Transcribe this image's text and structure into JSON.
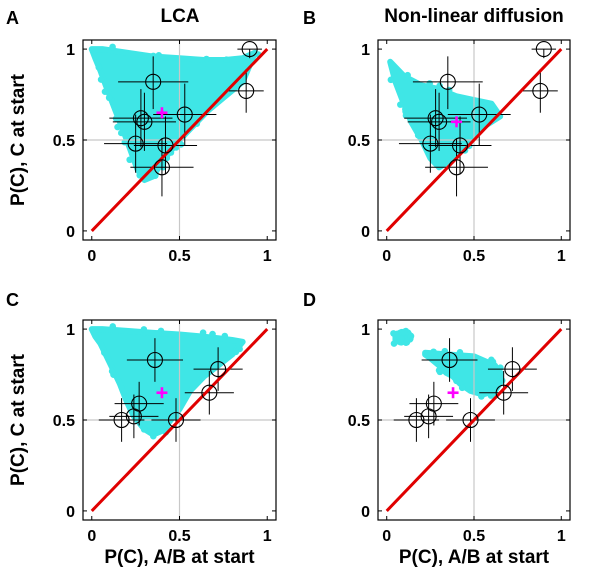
{
  "colors": {
    "simulation_cloud": "#3fe6e6",
    "identity_line": "#e00000",
    "mean_cross": "#ff00ff",
    "reference_line": "#c8c8c8",
    "data_marker": "#000000",
    "axes": "#000000"
  },
  "chart_data": [
    {
      "type": "scatter",
      "panel_letter": "A",
      "title": "LCA",
      "xlabel": "",
      "ylabel": "P(C), C at start",
      "xlim": [
        -0.05,
        1.05
      ],
      "ylim": [
        -0.05,
        1.05
      ],
      "xticks": [
        "0",
        "0.5",
        "1"
      ],
      "yticks": [
        "0",
        "0.5",
        "1"
      ],
      "reference_lines": {
        "x": 0.5,
        "y": 0.5
      },
      "identity_line": {
        "x": [
          0.0,
          1.0
        ],
        "y": [
          0.0,
          1.0
        ]
      },
      "simulation_region": {
        "x": [
          0.0,
          0.06,
          0.2,
          0.34,
          0.5,
          0.64,
          0.76,
          0.86,
          0.93,
          0.86,
          0.76,
          0.66,
          0.56,
          0.5,
          0.45,
          0.4,
          0.35,
          0.3,
          0.26,
          0.2,
          0.16,
          0.12,
          0.08,
          0.05,
          0.02
        ],
        "y": [
          1.0,
          1.0,
          0.98,
          0.96,
          0.95,
          0.94,
          0.94,
          0.95,
          0.98,
          0.82,
          0.74,
          0.66,
          0.56,
          0.5,
          0.44,
          0.38,
          0.3,
          0.28,
          0.34,
          0.5,
          0.6,
          0.7,
          0.8,
          0.88,
          0.95
        ]
      },
      "mean": {
        "x": 0.4,
        "y": 0.65
      },
      "data_points": [
        {
          "x": 0.9,
          "y": 1.0,
          "xerr": [
            0.83,
            0.97
          ],
          "yerr": [
            0.95,
            1.0
          ]
        },
        {
          "x": 0.88,
          "y": 0.77,
          "xerr": [
            0.78,
            0.98
          ],
          "yerr": [
            0.65,
            0.89
          ]
        },
        {
          "x": 0.35,
          "y": 0.82,
          "xerr": [
            0.15,
            0.55
          ],
          "yerr": [
            0.67,
            0.96
          ]
        },
        {
          "x": 0.28,
          "y": 0.62,
          "xerr": [
            0.1,
            0.46
          ],
          "yerr": [
            0.46,
            0.78
          ]
        },
        {
          "x": 0.3,
          "y": 0.6,
          "xerr": [
            0.12,
            0.48
          ],
          "yerr": [
            0.44,
            0.76
          ]
        },
        {
          "x": 0.53,
          "y": 0.64,
          "xerr": [
            0.35,
            0.71
          ],
          "yerr": [
            0.47,
            0.81
          ]
        },
        {
          "x": 0.25,
          "y": 0.48,
          "xerr": [
            0.07,
            0.43
          ],
          "yerr": [
            0.32,
            0.64
          ]
        },
        {
          "x": 0.42,
          "y": 0.47,
          "xerr": [
            0.24,
            0.6
          ],
          "yerr": [
            0.31,
            0.63
          ]
        },
        {
          "x": 0.4,
          "y": 0.35,
          "xerr": [
            0.22,
            0.58
          ],
          "yerr": [
            0.19,
            0.51
          ]
        }
      ]
    },
    {
      "type": "scatter",
      "panel_letter": "B",
      "title": "Non-linear diffusion",
      "xlabel": "",
      "ylabel": "",
      "xlim": [
        -0.05,
        1.05
      ],
      "ylim": [
        -0.05,
        1.05
      ],
      "xticks": [
        "0",
        "0.5",
        "1"
      ],
      "yticks": [
        "0",
        "0.5",
        "1"
      ],
      "reference_lines": {
        "x": 0.5,
        "y": 0.5
      },
      "identity_line": {
        "x": [
          0.0,
          1.0
        ],
        "y": [
          0.0,
          1.0
        ]
      },
      "simulation_region": {
        "x": [
          0.02,
          0.1,
          0.2,
          0.3,
          0.4,
          0.5,
          0.6,
          0.65,
          0.6,
          0.55,
          0.5,
          0.45,
          0.4,
          0.35,
          0.3,
          0.25,
          0.2,
          0.14,
          0.09,
          0.05
        ],
        "y": [
          0.93,
          0.85,
          0.8,
          0.78,
          0.74,
          0.72,
          0.7,
          0.63,
          0.6,
          0.57,
          0.52,
          0.47,
          0.42,
          0.38,
          0.35,
          0.4,
          0.5,
          0.6,
          0.72,
          0.82
        ]
      },
      "mean": {
        "x": 0.4,
        "y": 0.6
      },
      "data_points": [
        {
          "x": 0.9,
          "y": 1.0,
          "xerr": [
            0.83,
            0.97
          ],
          "yerr": [
            0.95,
            1.0
          ]
        },
        {
          "x": 0.88,
          "y": 0.77,
          "xerr": [
            0.78,
            0.98
          ],
          "yerr": [
            0.65,
            0.89
          ]
        },
        {
          "x": 0.35,
          "y": 0.82,
          "xerr": [
            0.15,
            0.55
          ],
          "yerr": [
            0.67,
            0.96
          ]
        },
        {
          "x": 0.28,
          "y": 0.62,
          "xerr": [
            0.1,
            0.46
          ],
          "yerr": [
            0.46,
            0.78
          ]
        },
        {
          "x": 0.3,
          "y": 0.6,
          "xerr": [
            0.12,
            0.48
          ],
          "yerr": [
            0.44,
            0.76
          ]
        },
        {
          "x": 0.53,
          "y": 0.64,
          "xerr": [
            0.35,
            0.71
          ],
          "yerr": [
            0.47,
            0.81
          ]
        },
        {
          "x": 0.25,
          "y": 0.48,
          "xerr": [
            0.07,
            0.43
          ],
          "yerr": [
            0.32,
            0.64
          ]
        },
        {
          "x": 0.42,
          "y": 0.47,
          "xerr": [
            0.24,
            0.6
          ],
          "yerr": [
            0.31,
            0.63
          ]
        },
        {
          "x": 0.4,
          "y": 0.35,
          "xerr": [
            0.22,
            0.58
          ],
          "yerr": [
            0.19,
            0.51
          ]
        }
      ]
    },
    {
      "type": "scatter",
      "panel_letter": "C",
      "title": "",
      "xlabel": "P(C), A/B at start",
      "ylabel": "P(C), C at start",
      "xlim": [
        -0.05,
        1.05
      ],
      "ylim": [
        -0.05,
        1.05
      ],
      "xticks": [
        "0",
        "0.5",
        "1"
      ],
      "yticks": [
        "0",
        "0.5",
        "1"
      ],
      "reference_lines": {
        "x": 0.5,
        "y": 0.5
      },
      "identity_line": {
        "x": [
          0.0,
          1.0
        ],
        "y": [
          0.0,
          1.0
        ]
      },
      "simulation_region": {
        "x": [
          0.0,
          0.06,
          0.2,
          0.34,
          0.5,
          0.62,
          0.72,
          0.8,
          0.86,
          0.8,
          0.72,
          0.64,
          0.56,
          0.5,
          0.45,
          0.4,
          0.35,
          0.3,
          0.24,
          0.2,
          0.16,
          0.12,
          0.08,
          0.05,
          0.02
        ],
        "y": [
          1.0,
          1.0,
          0.99,
          0.98,
          0.97,
          0.96,
          0.95,
          0.94,
          0.93,
          0.86,
          0.8,
          0.74,
          0.66,
          0.56,
          0.5,
          0.44,
          0.42,
          0.45,
          0.52,
          0.6,
          0.7,
          0.78,
          0.86,
          0.92,
          0.96
        ]
      },
      "mean": {
        "x": 0.4,
        "y": 0.65
      },
      "data_points": [
        {
          "x": 0.17,
          "y": 0.5,
          "xerr": [
            0.04,
            0.3
          ],
          "yerr": [
            0.38,
            0.62
          ]
        },
        {
          "x": 0.24,
          "y": 0.52,
          "xerr": [
            0.1,
            0.38
          ],
          "yerr": [
            0.4,
            0.64
          ]
        },
        {
          "x": 0.27,
          "y": 0.59,
          "xerr": [
            0.13,
            0.41
          ],
          "yerr": [
            0.47,
            0.71
          ]
        },
        {
          "x": 0.36,
          "y": 0.83,
          "xerr": [
            0.2,
            0.52
          ],
          "yerr": [
            0.71,
            0.95
          ]
        },
        {
          "x": 0.48,
          "y": 0.5,
          "xerr": [
            0.34,
            0.62
          ],
          "yerr": [
            0.38,
            0.62
          ]
        },
        {
          "x": 0.67,
          "y": 0.65,
          "xerr": [
            0.53,
            0.81
          ],
          "yerr": [
            0.53,
            0.77
          ]
        },
        {
          "x": 0.72,
          "y": 0.78,
          "xerr": [
            0.58,
            0.86
          ],
          "yerr": [
            0.66,
            0.9
          ]
        }
      ]
    },
    {
      "type": "scatter",
      "panel_letter": "D",
      "title": "",
      "xlabel": "P(C), A/B at start",
      "ylabel": "",
      "xlim": [
        -0.05,
        1.05
      ],
      "ylim": [
        -0.05,
        1.05
      ],
      "xticks": [
        "0",
        "0.5",
        "1"
      ],
      "yticks": [
        "0",
        "0.5",
        "1"
      ],
      "reference_lines": {
        "x": 0.5,
        "y": 0.5
      },
      "identity_line": {
        "x": [
          0.0,
          1.0
        ],
        "y": [
          0.0,
          1.0
        ]
      },
      "simulation_region": {
        "x": [
          0.05,
          0.12,
          0.12,
          0.05
        ],
        "y": [
          0.97,
          0.97,
          0.94,
          0.94
        ]
      },
      "simulation_region_2": {
        "x": [
          0.22,
          0.35,
          0.5,
          0.62,
          0.66,
          0.62,
          0.55,
          0.48,
          0.42,
          0.38,
          0.34,
          0.3,
          0.25,
          0.22
        ],
        "y": [
          0.87,
          0.86,
          0.85,
          0.8,
          0.72,
          0.66,
          0.64,
          0.66,
          0.7,
          0.74,
          0.76,
          0.8,
          0.84,
          0.86
        ]
      },
      "mean": {
        "x": 0.38,
        "y": 0.65
      },
      "data_points": [
        {
          "x": 0.17,
          "y": 0.5,
          "xerr": [
            0.04,
            0.3
          ],
          "yerr": [
            0.38,
            0.62
          ]
        },
        {
          "x": 0.24,
          "y": 0.52,
          "xerr": [
            0.1,
            0.38
          ],
          "yerr": [
            0.4,
            0.64
          ]
        },
        {
          "x": 0.27,
          "y": 0.59,
          "xerr": [
            0.13,
            0.41
          ],
          "yerr": [
            0.47,
            0.71
          ]
        },
        {
          "x": 0.36,
          "y": 0.83,
          "xerr": [
            0.2,
            0.52
          ],
          "yerr": [
            0.71,
            0.95
          ]
        },
        {
          "x": 0.48,
          "y": 0.5,
          "xerr": [
            0.34,
            0.62
          ],
          "yerr": [
            0.38,
            0.62
          ]
        },
        {
          "x": 0.67,
          "y": 0.65,
          "xerr": [
            0.53,
            0.81
          ],
          "yerr": [
            0.53,
            0.77
          ]
        },
        {
          "x": 0.72,
          "y": 0.78,
          "xerr": [
            0.58,
            0.86
          ],
          "yerr": [
            0.66,
            0.9
          ]
        }
      ]
    }
  ]
}
